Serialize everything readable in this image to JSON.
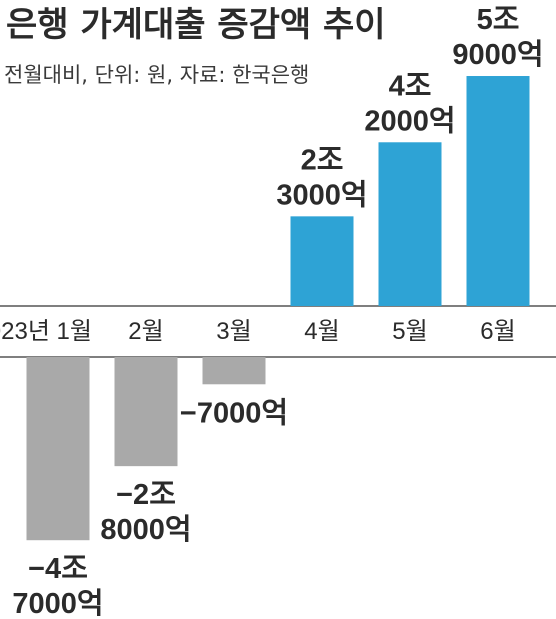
{
  "chart_data": {
    "type": "bar",
    "title": "은행 가계대출 증감액 추이",
    "subtitle": "전월대비, 단위: 원, 자료: 한국은행",
    "categories": [
      "2023년 1월",
      "2월",
      "3월",
      "4월",
      "5월",
      "6월"
    ],
    "values": [
      -47000,
      -28000,
      -7000,
      23000,
      42000,
      59000
    ],
    "unit": "억원",
    "data_labels": [
      [
        "−4조",
        "7000억"
      ],
      [
        "−2조",
        "8000억"
      ],
      [
        "−7000억"
      ],
      [
        "2조",
        "3000억"
      ],
      [
        "4조",
        "2000억"
      ],
      [
        "5조",
        "9000억"
      ]
    ],
    "colors": {
      "positive": "#2ea3d5",
      "negative": "#a9a9a9",
      "axis": "#555555"
    },
    "grid": false,
    "legend": "none"
  }
}
